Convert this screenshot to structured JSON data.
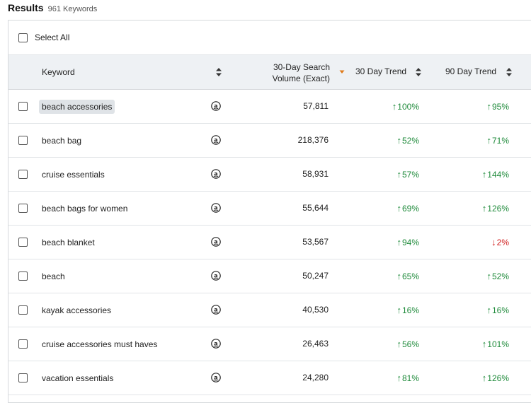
{
  "header": {
    "title": "Results",
    "count": "961 Keywords"
  },
  "select_all_label": "Select All",
  "columns": {
    "keyword": "Keyword",
    "volume_line1": "30-Day Search",
    "volume_line2": "Volume (Exact)",
    "trend30": "30 Day Trend",
    "trend90": "90 Day Trend"
  },
  "colors": {
    "up": "#1e8a3a",
    "down": "#d01c1c",
    "sort_active": "#e07b1a",
    "header_bg": "#eef1f4"
  },
  "rows": [
    {
      "keyword": "beach accessories",
      "volume": "57,811",
      "t30": "100%",
      "t30_dir": "up",
      "t90": "95%",
      "t90_dir": "up",
      "highlight": true
    },
    {
      "keyword": "beach bag",
      "volume": "218,376",
      "t30": "52%",
      "t30_dir": "up",
      "t90": "71%",
      "t90_dir": "up"
    },
    {
      "keyword": "cruise essentials",
      "volume": "58,931",
      "t30": "57%",
      "t30_dir": "up",
      "t90": "144%",
      "t90_dir": "up"
    },
    {
      "keyword": "beach bags for women",
      "volume": "55,644",
      "t30": "69%",
      "t30_dir": "up",
      "t90": "126%",
      "t90_dir": "up"
    },
    {
      "keyword": "beach blanket",
      "volume": "53,567",
      "t30": "94%",
      "t30_dir": "up",
      "t90": "2%",
      "t90_dir": "down"
    },
    {
      "keyword": "beach",
      "volume": "50,247",
      "t30": "65%",
      "t30_dir": "up",
      "t90": "52%",
      "t90_dir": "up"
    },
    {
      "keyword": "kayak accessories",
      "volume": "40,530",
      "t30": "16%",
      "t30_dir": "up",
      "t90": "16%",
      "t90_dir": "up"
    },
    {
      "keyword": "cruise accessories must haves",
      "volume": "26,463",
      "t30": "56%",
      "t30_dir": "up",
      "t90": "101%",
      "t90_dir": "up"
    },
    {
      "keyword": "vacation essentials",
      "volume": "24,280",
      "t30": "81%",
      "t30_dir": "up",
      "t90": "126%",
      "t90_dir": "up"
    }
  ]
}
